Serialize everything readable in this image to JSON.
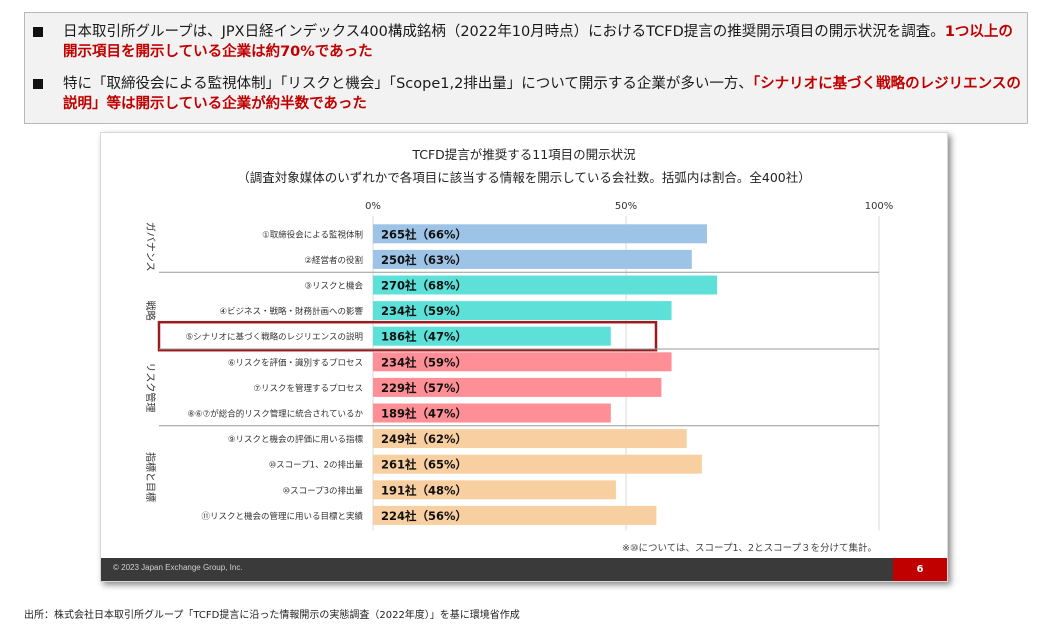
{
  "summary": {
    "bullet1_text": "日本取引所グループは、JPX日経インデックス400構成銘柄（2022年10月時点）におけるTCFD提言の推奨開示項目の開示状況を調査。",
    "bullet1_highlight": "1つ以上の開示項目を開示している企業は約70%であった",
    "bullet2_text": "特に「取締役会による監視体制」「リスクと機会」「Scope1,2排出量」について開示する企業が多い一方、",
    "bullet2_highlight": "「シナリオに基づく戦略のレジリエンスの説明」等は開示している企業が約半数であった"
  },
  "chart_data": {
    "type": "bar",
    "orientation": "horizontal",
    "title": "TCFD提言が推奨する11項目の開示状況",
    "subtitle": "（調査対象媒体のいずれかで各項目に該当する情報を開示している会社数。括弧内は割合。全400社）",
    "x_ticks": [
      "0%",
      "50%",
      "100%"
    ],
    "xlim": [
      0,
      100
    ],
    "grid": true,
    "groups": [
      {
        "name": "ガバナンス",
        "color": "#9dc3e6",
        "items": [
          {
            "label": "①取締役会による監視体制",
            "value": 66,
            "data_label": "265社（66%）"
          },
          {
            "label": "②経営者の役割",
            "value": 63,
            "data_label": "250社（63%）"
          }
        ]
      },
      {
        "name": "戦略",
        "color": "#5ce0d8",
        "items": [
          {
            "label": "③リスクと機会",
            "value": 68,
            "data_label": "270社（68%）"
          },
          {
            "label": "④ビジネス・戦略・財務計画への影響",
            "value": 59,
            "data_label": "234社（59%）"
          },
          {
            "label": "⑤シナリオに基づく戦略のレジリエンスの説明",
            "value": 47,
            "data_label": "186社（47%）",
            "highlight": true
          }
        ]
      },
      {
        "name": "リスク管理",
        "color": "#ff8f96",
        "items": [
          {
            "label": "⑥リスクを評価・識別するプロセス",
            "value": 59,
            "data_label": "234社（59%）"
          },
          {
            "label": "⑦リスクを管理するプロセス",
            "value": 57,
            "data_label": "229社（57%）"
          },
          {
            "label": "⑧⑥⑦が総合的リスク管理に統合されているか",
            "value": 47,
            "data_label": "189社（47%）"
          }
        ]
      },
      {
        "name": "指標と目標",
        "color": "#f8cfa1",
        "items": [
          {
            "label": "⑨リスクと機会の評価に用いる指標",
            "value": 62,
            "data_label": "249社（62%）"
          },
          {
            "label": "⑩スコープ1、2の排出量",
            "value": 65,
            "data_label": "261社（65%）"
          },
          {
            "label": "⑩スコープ3の排出量",
            "value": 48,
            "data_label": "191社（48%）"
          },
          {
            "label": "⑪リスクと機会の管理に用いる目標と実績",
            "value": 56,
            "data_label": "224社（56%）"
          }
        ]
      }
    ],
    "note": "※⑩については、スコープ1、2とスコープ３を分けて集計。"
  },
  "slide": {
    "copyright": "© 2023 Japan Exchange Group, Inc.",
    "page_number": "6"
  },
  "source": "出所：株式会社日本取引所グループ「TCFD提言に沿った情報開示の実態調査（2022年度）」を基に環境省作成",
  "colors": {
    "accent_red": "#c00000",
    "highlight_border": "#9b1c1c"
  }
}
